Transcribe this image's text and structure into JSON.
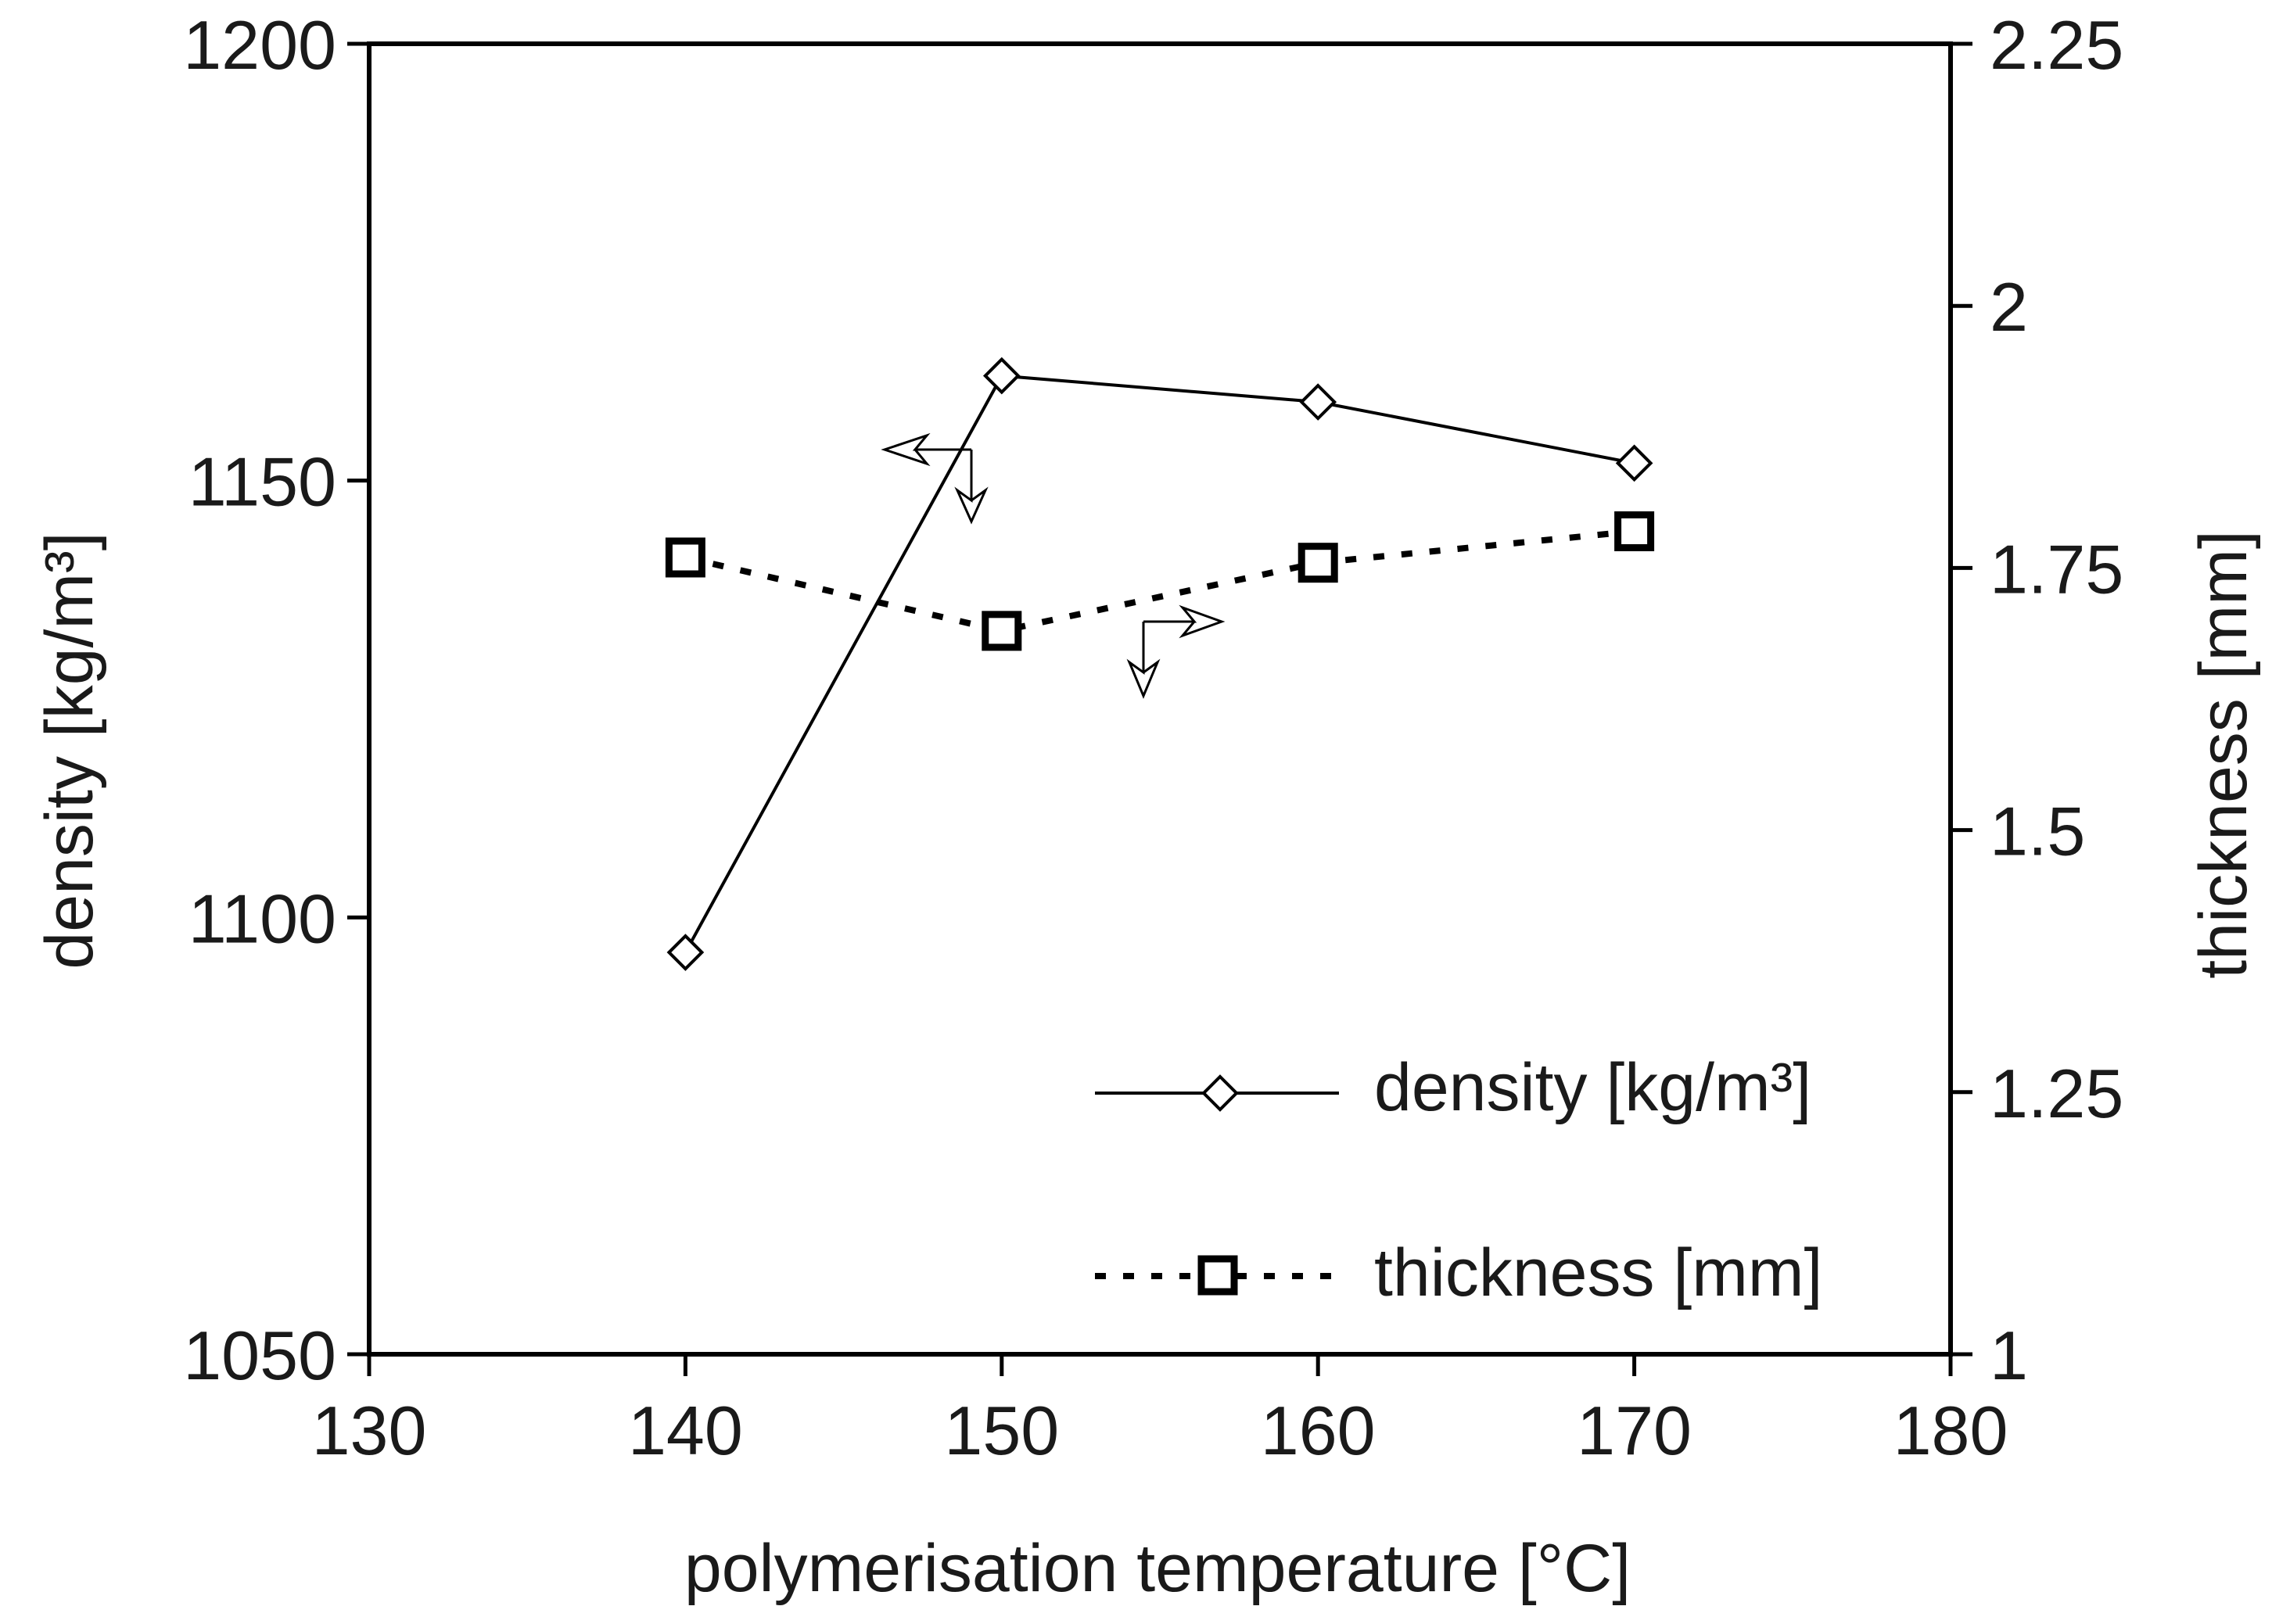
{
  "chart_data": {
    "type": "line",
    "title": "",
    "xlabel": "polymerisation temperature [°C]",
    "ylabel_left": "density [kg/m³]",
    "ylabel_right": "thickness [mm]",
    "xlim": [
      130,
      180
    ],
    "ylim_left": [
      1050,
      1200
    ],
    "ylim_right": [
      1,
      2.25
    ],
    "x_ticks": [
      "130",
      "140",
      "150",
      "160",
      "170",
      "180"
    ],
    "y_left_ticks": [
      "1050",
      "1100",
      "1150",
      "1200"
    ],
    "y_right_ticks": [
      "1",
      "1.25",
      "1.5",
      "1.75",
      "2",
      "2.25"
    ],
    "grid": false,
    "legend_position": "bottom-right",
    "series": [
      {
        "name": "density [kg/m³]",
        "axis": "left",
        "marker": "diamond",
        "line": "solid",
        "x": [
          140,
          150,
          160,
          170
        ],
        "values": [
          1096,
          1162,
          1159,
          1152
        ]
      },
      {
        "name": "thickness [mm]",
        "axis": "right",
        "marker": "square",
        "line": "dotted",
        "x": [
          140,
          150,
          160,
          170
        ],
        "values": [
          1.76,
          1.69,
          1.755,
          1.785
        ]
      }
    ]
  }
}
